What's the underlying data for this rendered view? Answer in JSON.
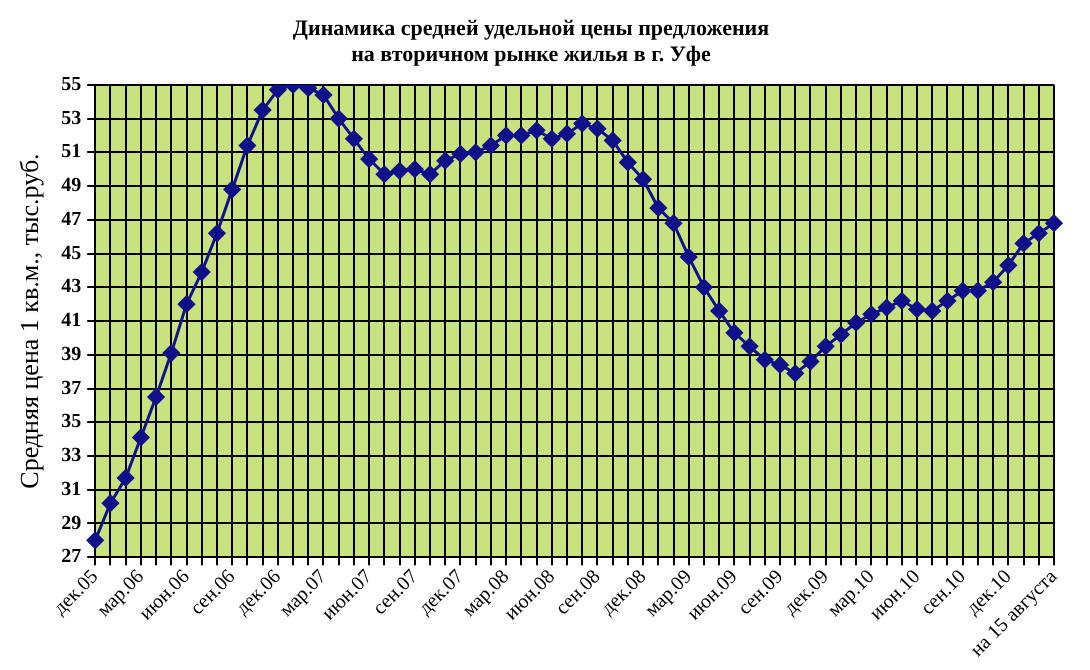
{
  "chart_data": {
    "type": "line",
    "title": "Динамика средней удельной цены предложения\nна вторичном рынке жилья в г. Уфе",
    "ylabel": "Средняя цена 1 кв.м., тыс.руб.",
    "categories": [
      "дек.05",
      null,
      null,
      "мар.06",
      null,
      null,
      "июн.06",
      null,
      null,
      "сен.06",
      null,
      null,
      "дек.06",
      null,
      null,
      "мар.07",
      null,
      null,
      "июн.07",
      null,
      null,
      "сен.07",
      null,
      null,
      "дек.07",
      null,
      null,
      "мар.08",
      null,
      null,
      "июн.08",
      null,
      null,
      "сен.08",
      null,
      null,
      "дек.08",
      null,
      null,
      "мар.09",
      null,
      null,
      "июн.09",
      null,
      null,
      "сен.09",
      null,
      null,
      "дек.09",
      null,
      null,
      "мар.10",
      null,
      null,
      "июн.10",
      null,
      null,
      "сен.10",
      null,
      null,
      "дек.10",
      null,
      null,
      "на 15 августа"
    ],
    "series": [
      {
        "color": "#10108a",
        "values": [
          28.0,
          30.2,
          31.7,
          34.1,
          36.5,
          39.1,
          42.0,
          43.9,
          46.2,
          48.8,
          51.4,
          53.5,
          54.7,
          55.0,
          54.8,
          54.4,
          53.0,
          51.8,
          50.6,
          49.7,
          49.9,
          50.0,
          49.7,
          50.5,
          50.9,
          51.0,
          51.4,
          52.0,
          52.0,
          52.3,
          51.8,
          52.1,
          52.7,
          52.4,
          51.7,
          50.4,
          49.4,
          47.7,
          46.8,
          44.8,
          43.0,
          41.6,
          40.3,
          39.5,
          38.7,
          38.4,
          37.9,
          38.6,
          39.5,
          40.2,
          40.9,
          41.4,
          41.8,
          42.2,
          41.7,
          41.6,
          42.2,
          42.8,
          42.8,
          43.3,
          44.3,
          45.6,
          46.2,
          46.8
        ]
      }
    ],
    "ylim": [
      27,
      55
    ],
    "yticks": [
      27,
      29,
      31,
      33,
      35,
      37,
      39,
      41,
      43,
      45,
      47,
      49,
      51,
      53,
      55
    ],
    "grid": true,
    "legend": false,
    "marker": "diamond",
    "line_style": "solid"
  }
}
